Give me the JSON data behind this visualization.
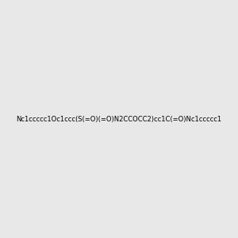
{
  "smiles": "Nc1ccccc1Oc1ccc(S(=O)(=O)N2CCOCC2)cc1C(=O)Nc1ccccc1",
  "image_size": 300,
  "background_color": "#e8e8e8",
  "title": ""
}
